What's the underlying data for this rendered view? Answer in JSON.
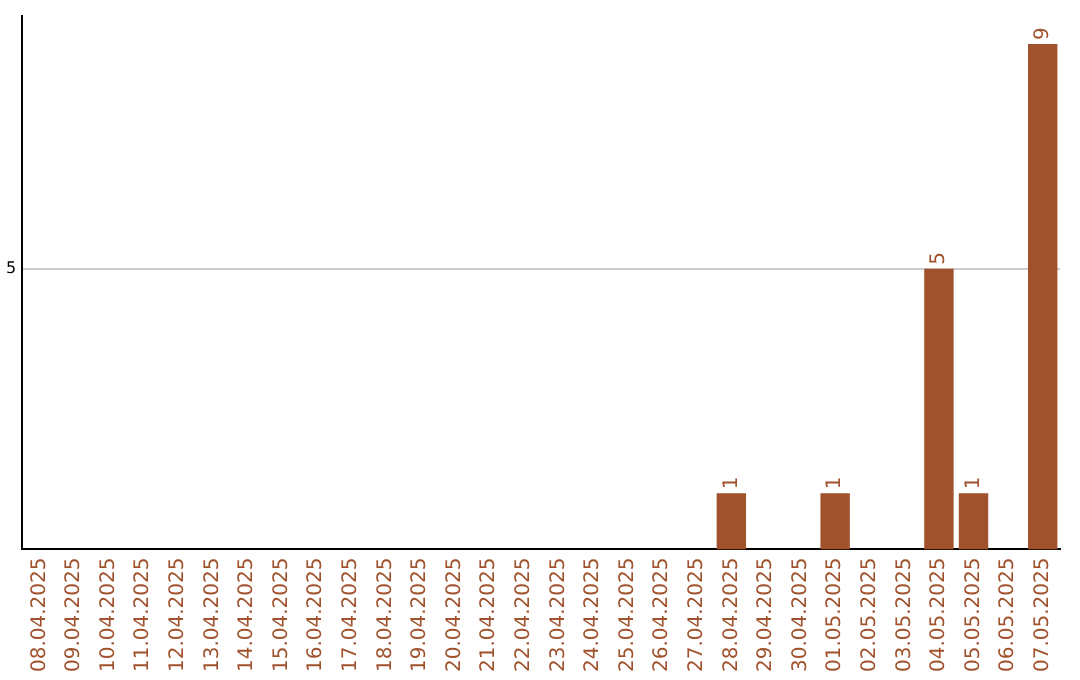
{
  "chart_data": {
    "type": "bar",
    "categories": [
      "08.04.2025",
      "09.04.2025",
      "10.04.2025",
      "11.04.2025",
      "12.04.2025",
      "13.04.2025",
      "14.04.2025",
      "15.04.2025",
      "16.04.2025",
      "17.04.2025",
      "18.04.2025",
      "19.04.2025",
      "20.04.2025",
      "21.04.2025",
      "22.04.2025",
      "23.04.2025",
      "24.04.2025",
      "25.04.2025",
      "26.04.2025",
      "27.04.2025",
      "28.04.2025",
      "29.04.2025",
      "30.04.2025",
      "01.05.2025",
      "02.05.2025",
      "03.05.2025",
      "04.05.2025",
      "05.05.2025",
      "06.05.2025",
      "07.05.2025"
    ],
    "values": [
      null,
      null,
      null,
      null,
      null,
      null,
      null,
      null,
      null,
      null,
      null,
      null,
      null,
      null,
      null,
      null,
      null,
      null,
      null,
      null,
      1,
      null,
      null,
      1,
      null,
      null,
      5,
      1,
      null,
      9
    ],
    "color": "#a0522d",
    "ylim": [
      0,
      9.5
    ],
    "yticks": [
      5
    ],
    "grid": "y",
    "data_labels": true
  }
}
